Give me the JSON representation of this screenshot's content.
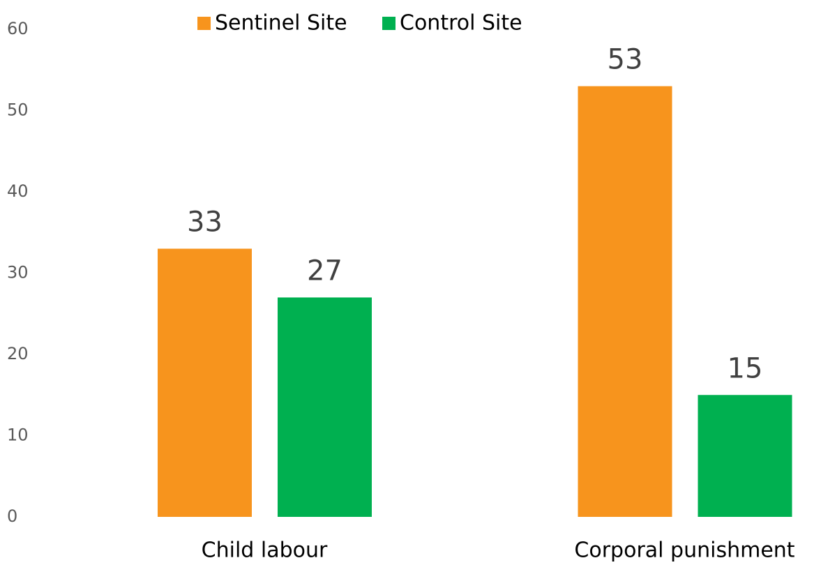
{
  "chart_data": {
    "type": "bar",
    "categories": [
      "Child labour",
      "Corporal punishment"
    ],
    "series": [
      {
        "name": "Sentinel Site",
        "color": "#f7941d",
        "values": [
          33,
          53
        ]
      },
      {
        "name": "Control Site",
        "color": "#00b050",
        "values": [
          27,
          15
        ]
      }
    ],
    "ylim": [
      0,
      60
    ],
    "yticks": [
      0,
      10,
      20,
      30,
      40,
      50,
      60
    ],
    "grid": false,
    "legend": "top"
  }
}
